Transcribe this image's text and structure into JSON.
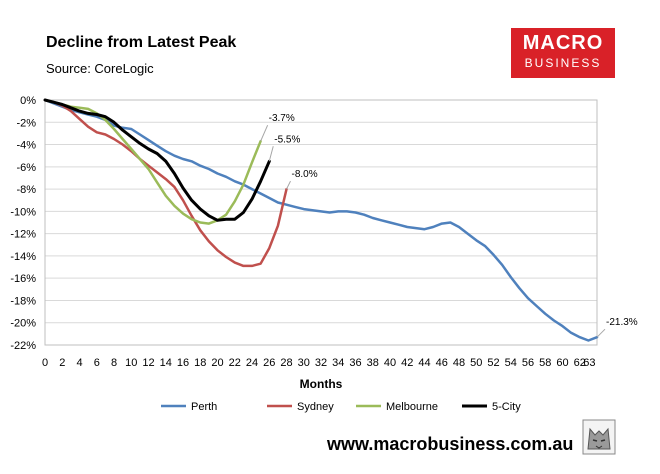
{
  "header": {
    "title": "Decline from Latest Peak",
    "subtitle": "Source: CoreLogic"
  },
  "logo": {
    "line1": "MACRO",
    "line2": "BUSINESS"
  },
  "footer": {
    "website": "www.macrobusiness.com.au"
  },
  "colors": {
    "Perth": "#4f81bd",
    "Sydney": "#c0504d",
    "Melbourne": "#9bbb59",
    "5-City": "#000000",
    "logo_red": "#d92128"
  },
  "chart_data": {
    "type": "line",
    "title": "Decline from Latest Peak",
    "subtitle": "Source: CoreLogic",
    "xlabel": "Months",
    "ylabel": "",
    "xlim": [
      0,
      64
    ],
    "ylim": [
      -22,
      0
    ],
    "x_ticks": [
      0,
      2,
      4,
      6,
      8,
      10,
      12,
      14,
      16,
      18,
      20,
      22,
      24,
      26,
      28,
      30,
      32,
      34,
      36,
      38,
      40,
      42,
      44,
      46,
      48,
      50,
      52,
      54,
      56,
      58,
      60,
      62
    ],
    "y_ticks": [
      0,
      -2,
      -4,
      -6,
      -8,
      -10,
      -12,
      -14,
      -16,
      -18,
      -20,
      -22
    ],
    "y_tick_labels": [
      "0%",
      "-2%",
      "-4%",
      "-6%",
      "-8%",
      "-10%",
      "-12%",
      "-14%",
      "-16%",
      "-18%",
      "-20%",
      "-22%"
    ],
    "x_axis_extra_tick_label": "63",
    "grid": "horizontal",
    "legend_position": "bottom",
    "series": [
      {
        "name": "Perth",
        "x": [
          0,
          1,
          2,
          3,
          4,
          5,
          6,
          7,
          8,
          9,
          10,
          11,
          12,
          13,
          14,
          15,
          16,
          17,
          18,
          19,
          20,
          21,
          22,
          23,
          24,
          25,
          26,
          27,
          28,
          29,
          30,
          31,
          32,
          33,
          34,
          35,
          36,
          37,
          38,
          39,
          40,
          41,
          42,
          43,
          44,
          45,
          46,
          47,
          48,
          49,
          50,
          51,
          52,
          53,
          54,
          55,
          56,
          57,
          58,
          59,
          60,
          61,
          62,
          63,
          64
        ],
        "values": [
          0,
          -0.3,
          -0.6,
          -0.9,
          -1.1,
          -1.3,
          -1.5,
          -1.8,
          -2.3,
          -2.5,
          -2.6,
          -3.1,
          -3.6,
          -4.1,
          -4.6,
          -5.0,
          -5.3,
          -5.5,
          -5.9,
          -6.2,
          -6.6,
          -6.9,
          -7.3,
          -7.6,
          -8.0,
          -8.4,
          -8.8,
          -9.2,
          -9.4,
          -9.6,
          -9.8,
          -9.9,
          -10.0,
          -10.1,
          -10.0,
          -10.0,
          -10.1,
          -10.3,
          -10.6,
          -10.8,
          -11.0,
          -11.2,
          -11.4,
          -11.5,
          -11.6,
          -11.4,
          -11.1,
          -11.0,
          -11.4,
          -12.0,
          -12.6,
          -13.1,
          -13.9,
          -14.8,
          -15.9,
          -16.9,
          -17.8,
          -18.5,
          -19.2,
          -19.8,
          -20.3,
          -20.9,
          -21.3,
          -21.6,
          -21.3
        ],
        "end_label": "-21.3%"
      },
      {
        "name": "Sydney",
        "x": [
          0,
          1,
          2,
          3,
          4,
          5,
          6,
          7,
          8,
          9,
          10,
          11,
          12,
          13,
          14,
          15,
          16,
          17,
          18,
          19,
          20,
          21,
          22,
          23,
          24,
          25,
          26,
          27,
          28
        ],
        "values": [
          0,
          -0.2,
          -0.5,
          -1.0,
          -1.7,
          -2.4,
          -2.9,
          -3.1,
          -3.5,
          -4.0,
          -4.6,
          -5.3,
          -5.9,
          -6.5,
          -7.1,
          -7.8,
          -9.0,
          -10.4,
          -11.7,
          -12.7,
          -13.5,
          -14.1,
          -14.6,
          -14.9,
          -14.9,
          -14.7,
          -13.3,
          -11.3,
          -8.0
        ],
        "end_label": "-8.0%"
      },
      {
        "name": "Melbourne",
        "x": [
          0,
          1,
          2,
          3,
          4,
          5,
          6,
          7,
          8,
          9,
          10,
          11,
          12,
          13,
          14,
          15,
          16,
          17,
          18,
          19,
          20,
          21,
          22,
          23,
          24,
          25
        ],
        "values": [
          0,
          -0.2,
          -0.4,
          -0.6,
          -0.7,
          -0.8,
          -1.2,
          -1.8,
          -2.6,
          -3.5,
          -4.4,
          -5.3,
          -6.2,
          -7.4,
          -8.6,
          -9.5,
          -10.2,
          -10.7,
          -11.0,
          -11.1,
          -10.8,
          -10.3,
          -9.1,
          -7.6,
          -5.6,
          -3.7
        ],
        "end_label": "-3.7%"
      },
      {
        "name": "5-City",
        "x": [
          0,
          1,
          2,
          3,
          4,
          5,
          6,
          7,
          8,
          9,
          10,
          11,
          12,
          13,
          14,
          15,
          16,
          17,
          18,
          19,
          20,
          21,
          22,
          23,
          24,
          25,
          26
        ],
        "values": [
          0,
          -0.2,
          -0.4,
          -0.7,
          -1.0,
          -1.2,
          -1.3,
          -1.5,
          -2.0,
          -2.7,
          -3.3,
          -3.9,
          -4.4,
          -4.8,
          -5.5,
          -6.6,
          -7.9,
          -9.0,
          -9.8,
          -10.4,
          -10.8,
          -10.7,
          -10.7,
          -10.1,
          -8.9,
          -7.3,
          -5.5
        ],
        "end_label": "-5.5%"
      }
    ]
  }
}
